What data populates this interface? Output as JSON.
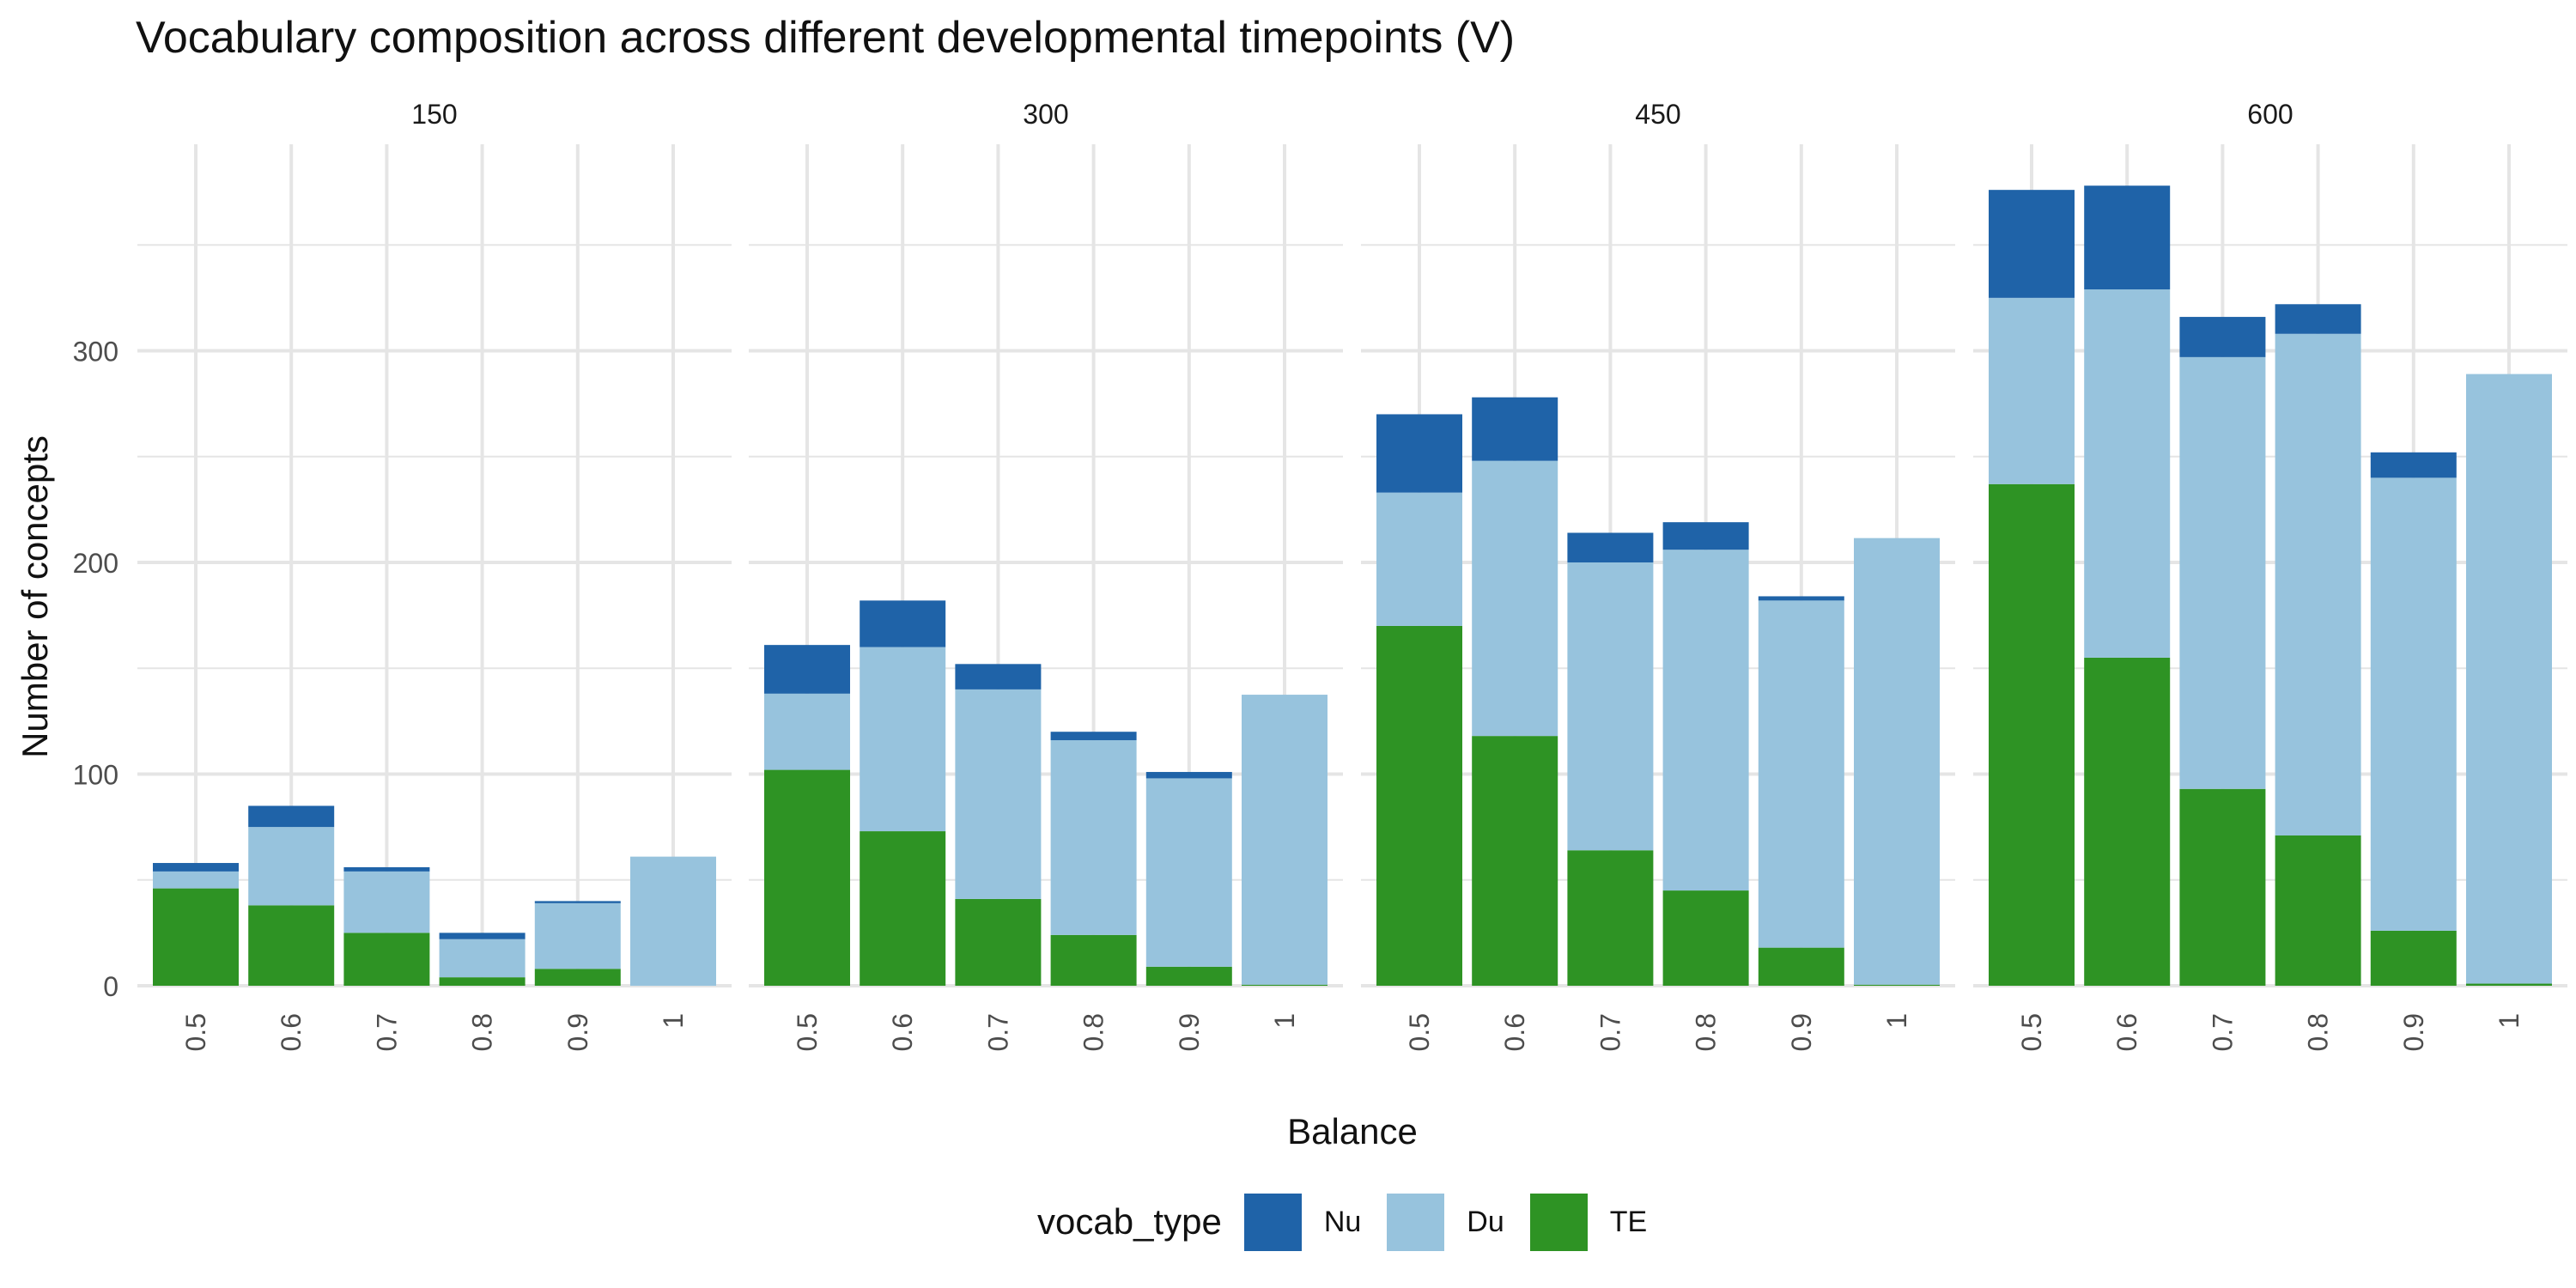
{
  "chart_data": {
    "type": "bar",
    "stacked": true,
    "title": "Vocabulary composition across different developmental timepoints (V)",
    "xlabel": "Balance",
    "ylabel": "Number of concepts",
    "ylim": [
      0,
      400
    ],
    "yticks": [
      0,
      100,
      200,
      300
    ],
    "grid": true,
    "legend": {
      "title": "vocab_type",
      "position": "bottom",
      "entries": [
        "Nu",
        "Du",
        "TE"
      ]
    },
    "colors": {
      "Nu": "#1f63a8",
      "Du": "#97c3dd",
      "TE": "#2e9324",
      "grid": "#e5e5e5"
    },
    "categories": [
      "0.5",
      "0.6",
      "0.7",
      "0.8",
      "0.9",
      "1"
    ],
    "stack_order": [
      "TE",
      "Du",
      "Nu"
    ],
    "panels": [
      {
        "label": "150",
        "series": [
          {
            "name": "TE",
            "values": [
              46,
              38,
              25,
              4,
              8,
              0
            ]
          },
          {
            "name": "Du",
            "values": [
              8,
              37,
              29,
              18,
              31,
              61
            ]
          },
          {
            "name": "Nu",
            "values": [
              4,
              10,
              2,
              3,
              1,
              0
            ]
          }
        ]
      },
      {
        "label": "300",
        "series": [
          {
            "name": "TE",
            "values": [
              102,
              73,
              41,
              24,
              9,
              0.5
            ]
          },
          {
            "name": "Du",
            "values": [
              36,
              87,
              99,
              92,
              89,
              137
            ]
          },
          {
            "name": "Nu",
            "values": [
              23,
              22,
              12,
              4,
              3,
              0
            ]
          }
        ]
      },
      {
        "label": "450",
        "series": [
          {
            "name": "TE",
            "values": [
              170,
              118,
              64,
              45,
              18,
              0.5
            ]
          },
          {
            "name": "Du",
            "values": [
              63,
              130,
              136,
              161,
              164,
              211
            ]
          },
          {
            "name": "Nu",
            "values": [
              37,
              30,
              14,
              13,
              2,
              0
            ]
          }
        ]
      },
      {
        "label": "600",
        "series": [
          {
            "name": "TE",
            "values": [
              237,
              155,
              93,
              71,
              26,
              1
            ]
          },
          {
            "name": "Du",
            "values": [
              88,
              174,
              204,
              237,
              214,
              288
            ]
          },
          {
            "name": "Nu",
            "values": [
              51,
              49,
              19,
              14,
              12,
              0
            ]
          }
        ]
      }
    ]
  }
}
